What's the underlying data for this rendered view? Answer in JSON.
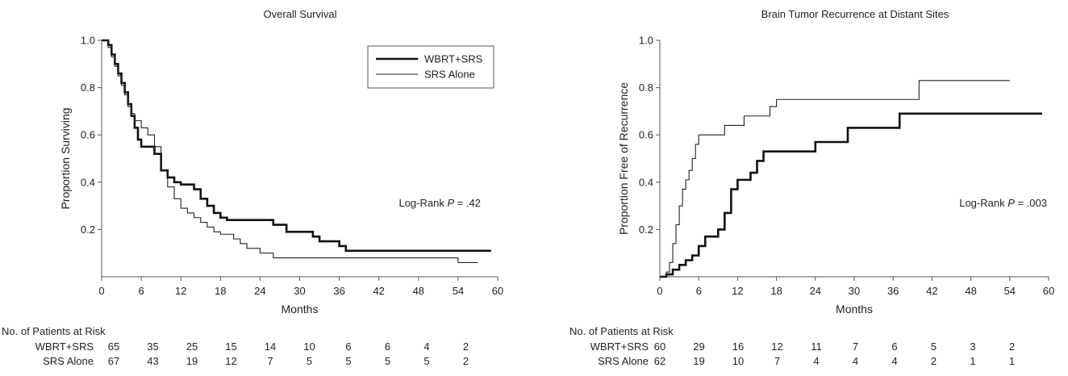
{
  "chart_data": [
    {
      "type": "line",
      "step": true,
      "title": "Overall Survival",
      "xlabel": "Months",
      "ylabel": "Proportion Surviving",
      "xlim": [
        0,
        60
      ],
      "ylim": [
        0,
        1.0
      ],
      "xticks": [
        "0",
        "6",
        "12",
        "18",
        "24",
        "30",
        "36",
        "42",
        "48",
        "54",
        "60"
      ],
      "yticks": [
        "0.2",
        "0.4",
        "0.6",
        "0.8",
        "1.0"
      ],
      "legend": {
        "position": "top-right",
        "entries": [
          "WBRT+SRS",
          "SRS Alone"
        ]
      },
      "annotation": {
        "prefix": "Log-Rank ",
        "p_label": "P",
        "suffix": " = .42"
      },
      "series": [
        {
          "name": "WBRT+SRS",
          "stroke": "#111111",
          "width": 2.6,
          "points": [
            [
              0,
              1.0
            ],
            [
              1,
              0.98
            ],
            [
              1.5,
              0.94
            ],
            [
              2,
              0.9
            ],
            [
              2.5,
              0.86
            ],
            [
              3,
              0.82
            ],
            [
              3.5,
              0.78
            ],
            [
              4,
              0.73
            ],
            [
              4.5,
              0.68
            ],
            [
              5,
              0.63
            ],
            [
              5.5,
              0.58
            ],
            [
              6,
              0.55
            ],
            [
              8,
              0.52
            ],
            [
              9,
              0.45
            ],
            [
              10,
              0.42
            ],
            [
              11,
              0.4
            ],
            [
              12,
              0.39
            ],
            [
              14,
              0.37
            ],
            [
              15,
              0.33
            ],
            [
              16,
              0.3
            ],
            [
              17,
              0.27
            ],
            [
              18,
              0.25
            ],
            [
              19,
              0.24
            ],
            [
              26,
              0.22
            ],
            [
              28,
              0.19
            ],
            [
              32,
              0.17
            ],
            [
              33,
              0.15
            ],
            [
              36,
              0.13
            ],
            [
              37,
              0.11
            ],
            [
              59,
              0.11
            ]
          ]
        },
        {
          "name": "SRS Alone",
          "stroke": "#222222",
          "width": 1.1,
          "points": [
            [
              0,
              1.0
            ],
            [
              1,
              0.97
            ],
            [
              1.5,
              0.93
            ],
            [
              2,
              0.89
            ],
            [
              2.5,
              0.85
            ],
            [
              3,
              0.81
            ],
            [
              3.5,
              0.77
            ],
            [
              4,
              0.72
            ],
            [
              4.5,
              0.69
            ],
            [
              5,
              0.66
            ],
            [
              6,
              0.63
            ],
            [
              7,
              0.6
            ],
            [
              8,
              0.55
            ],
            [
              9,
              0.45
            ],
            [
              10,
              0.38
            ],
            [
              11,
              0.33
            ],
            [
              12,
              0.29
            ],
            [
              13,
              0.27
            ],
            [
              14,
              0.25
            ],
            [
              15,
              0.23
            ],
            [
              16,
              0.21
            ],
            [
              17,
              0.19
            ],
            [
              18,
              0.18
            ],
            [
              20,
              0.16
            ],
            [
              21,
              0.14
            ],
            [
              22,
              0.12
            ],
            [
              24,
              0.1
            ],
            [
              26,
              0.08
            ],
            [
              54,
              0.06
            ],
            [
              57,
              0.06
            ]
          ]
        }
      ],
      "at_risk": {
        "heading": "No. of Patients at Risk",
        "rows": [
          {
            "label": "WBRT+SRS",
            "values": [
              "65",
              "35",
              "25",
              "15",
              "14",
              "10",
              "6",
              "6",
              "4",
              "2"
            ]
          },
          {
            "label": "SRS Alone",
            "values": [
              "67",
              "43",
              "19",
              "12",
              "7",
              "5",
              "5",
              "5",
              "5",
              "2"
            ]
          }
        ]
      }
    },
    {
      "type": "line",
      "step": true,
      "title": "Brain Tumor Recurrence at Distant Sites",
      "xlabel": "Months",
      "ylabel": "Proportion Free of Recurrence",
      "xlim": [
        0,
        60
      ],
      "ylim": [
        0,
        1.0
      ],
      "xticks": [
        "0",
        "6",
        "12",
        "18",
        "24",
        "30",
        "36",
        "42",
        "48",
        "54",
        "60"
      ],
      "yticks": [
        "0.2",
        "0.4",
        "0.6",
        "0.8",
        "1.0"
      ],
      "annotation": {
        "prefix": "Log-Rank ",
        "p_label": "P",
        "suffix": " = .003"
      },
      "series": [
        {
          "name": "WBRT+SRS",
          "stroke": "#111111",
          "width": 2.6,
          "points": [
            [
              0,
              0
            ],
            [
              1,
              0.01
            ],
            [
              2,
              0.03
            ],
            [
              3,
              0.05
            ],
            [
              4,
              0.07
            ],
            [
              5,
              0.09
            ],
            [
              6,
              0.13
            ],
            [
              7,
              0.17
            ],
            [
              9,
              0.2
            ],
            [
              10,
              0.27
            ],
            [
              11,
              0.37
            ],
            [
              12,
              0.41
            ],
            [
              14,
              0.44
            ],
            [
              15,
              0.49
            ],
            [
              16,
              0.53
            ],
            [
              24,
              0.57
            ],
            [
              29,
              0.63
            ],
            [
              37,
              0.69
            ],
            [
              59,
              0.69
            ]
          ]
        },
        {
          "name": "SRS Alone",
          "stroke": "#222222",
          "width": 1.1,
          "points": [
            [
              0,
              0
            ],
            [
              1,
              0.02
            ],
            [
              1.5,
              0.06
            ],
            [
              2,
              0.14
            ],
            [
              2.5,
              0.22
            ],
            [
              3,
              0.3
            ],
            [
              3.5,
              0.37
            ],
            [
              4,
              0.41
            ],
            [
              4.5,
              0.45
            ],
            [
              5,
              0.5
            ],
            [
              5.5,
              0.56
            ],
            [
              6,
              0.6
            ],
            [
              10,
              0.64
            ],
            [
              13,
              0.68
            ],
            [
              17,
              0.72
            ],
            [
              18,
              0.75
            ],
            [
              40,
              0.83
            ],
            [
              54,
              0.83
            ]
          ]
        }
      ],
      "at_risk": {
        "heading": "No. of Patients at Risk",
        "rows": [
          {
            "label": "WBRT+SRS",
            "values": [
              "60",
              "29",
              "16",
              "12",
              "11",
              "7",
              "6",
              "5",
              "3",
              "2"
            ]
          },
          {
            "label": "SRS Alone",
            "values": [
              "62",
              "19",
              "10",
              "7",
              "4",
              "4",
              "4",
              "2",
              "1",
              "1"
            ]
          }
        ]
      }
    }
  ]
}
